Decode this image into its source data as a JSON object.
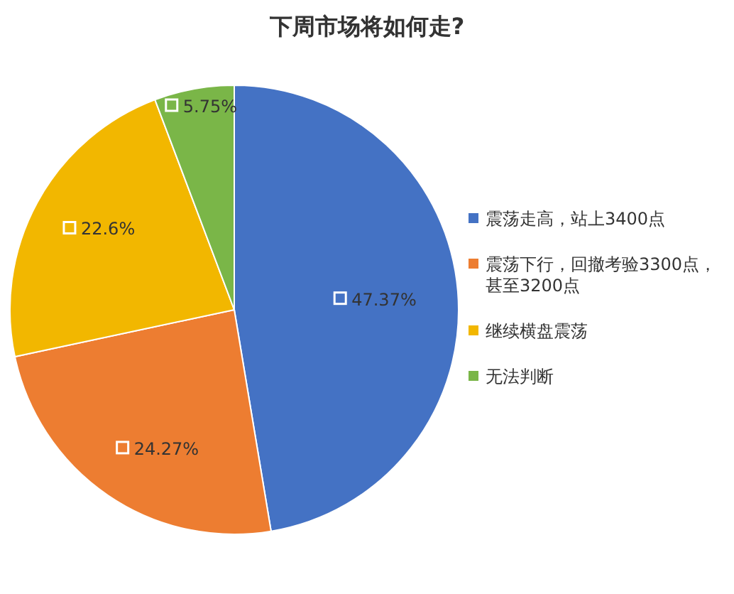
{
  "chart_data": {
    "type": "pie",
    "title": "下周市场将如何走?",
    "categories": [
      "震荡走高，站上3400点",
      "震荡下行，回撤考验3300点，甚至3200点",
      "继续横盘震荡",
      "无法判断"
    ],
    "values": [
      47.37,
      24.27,
      22.6,
      5.75
    ],
    "colors": [
      "#4472c4",
      "#ed7d31",
      "#f2b700",
      "#7ab648"
    ],
    "value_labels": [
      "47.37%",
      "24.27%",
      "22.6%",
      "5.75%"
    ],
    "legend": "right"
  }
}
